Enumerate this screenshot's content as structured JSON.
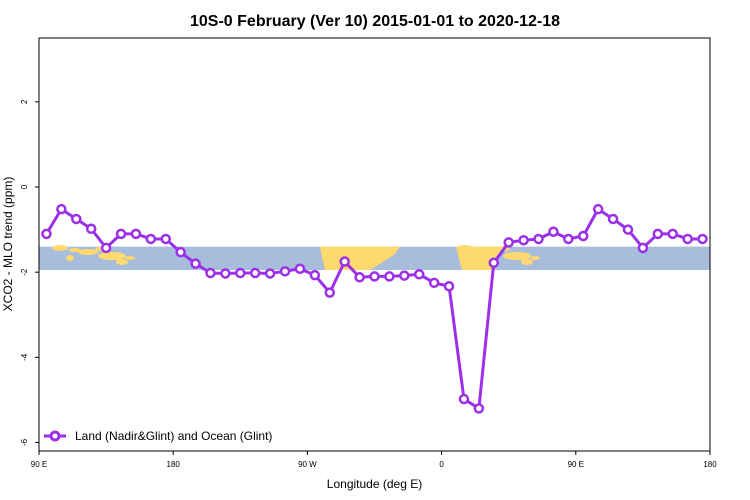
{
  "chart_data": {
    "type": "line",
    "title": "10S-0 February (Ver 10)   2015-01-01 to 2020-12-18",
    "xlabel": "Longitude (deg E)",
    "ylabel": "XCO2 - MLO trend (ppm)",
    "xlim": [
      90,
      540
    ],
    "ylim": [
      -6.2,
      3.5
    ],
    "x_ticks": [
      {
        "value": 90,
        "label": "90 E"
      },
      {
        "value": 180,
        "label": "180"
      },
      {
        "value": 270,
        "label": "90 W"
      },
      {
        "value": 360,
        "label": "0"
      },
      {
        "value": 450,
        "label": "90 E"
      },
      {
        "value": 540,
        "label": "180"
      }
    ],
    "y_ticks": [
      {
        "value": 2,
        "label": "2"
      },
      {
        "value": 0,
        "label": "0"
      },
      {
        "value": -2,
        "label": "-2"
      },
      {
        "value": -4,
        "label": "-4"
      },
      {
        "value": -6,
        "label": "-6"
      }
    ],
    "map_band": {
      "ymin": -1.95,
      "ymax": -1.4,
      "ocean_color": "#a8bcdc",
      "land_color": "#fdd96e"
    },
    "legend": {
      "placement": "bottom-left",
      "entries": [
        "Land (Nadir&Glint) and Ocean (Glint)"
      ]
    },
    "series": [
      {
        "name": "Land (Nadir&Glint) and Ocean (Glint)",
        "color": "#9b30e8",
        "x": [
          95,
          105,
          115,
          125,
          135,
          145,
          155,
          165,
          175,
          185,
          195,
          205,
          215,
          225,
          235,
          245,
          255,
          265,
          275,
          285,
          295,
          305,
          315,
          325,
          335,
          345,
          355,
          365,
          375,
          385,
          395,
          405,
          415,
          425,
          435,
          445,
          455,
          465,
          475,
          485,
          495,
          505,
          515,
          525,
          535
        ],
        "y": [
          -1.1,
          -0.52,
          -0.75,
          -0.98,
          -1.43,
          -1.1,
          -1.1,
          -1.22,
          -1.22,
          -1.53,
          -1.8,
          -2.02,
          -2.03,
          -2.02,
          -2.02,
          -2.03,
          -1.98,
          -1.92,
          -2.07,
          -2.48,
          -1.75,
          -2.12,
          -2.1,
          -2.1,
          -2.08,
          -2.05,
          -2.25,
          -2.33,
          -4.98,
          -5.2,
          -1.78,
          -1.3,
          -1.25,
          -1.22,
          -1.05,
          -1.22,
          -1.15,
          -0.52,
          -0.75,
          -1.0,
          -1.43,
          -1.1,
          -1.1,
          -1.22,
          -1.22
        ]
      }
    ]
  }
}
